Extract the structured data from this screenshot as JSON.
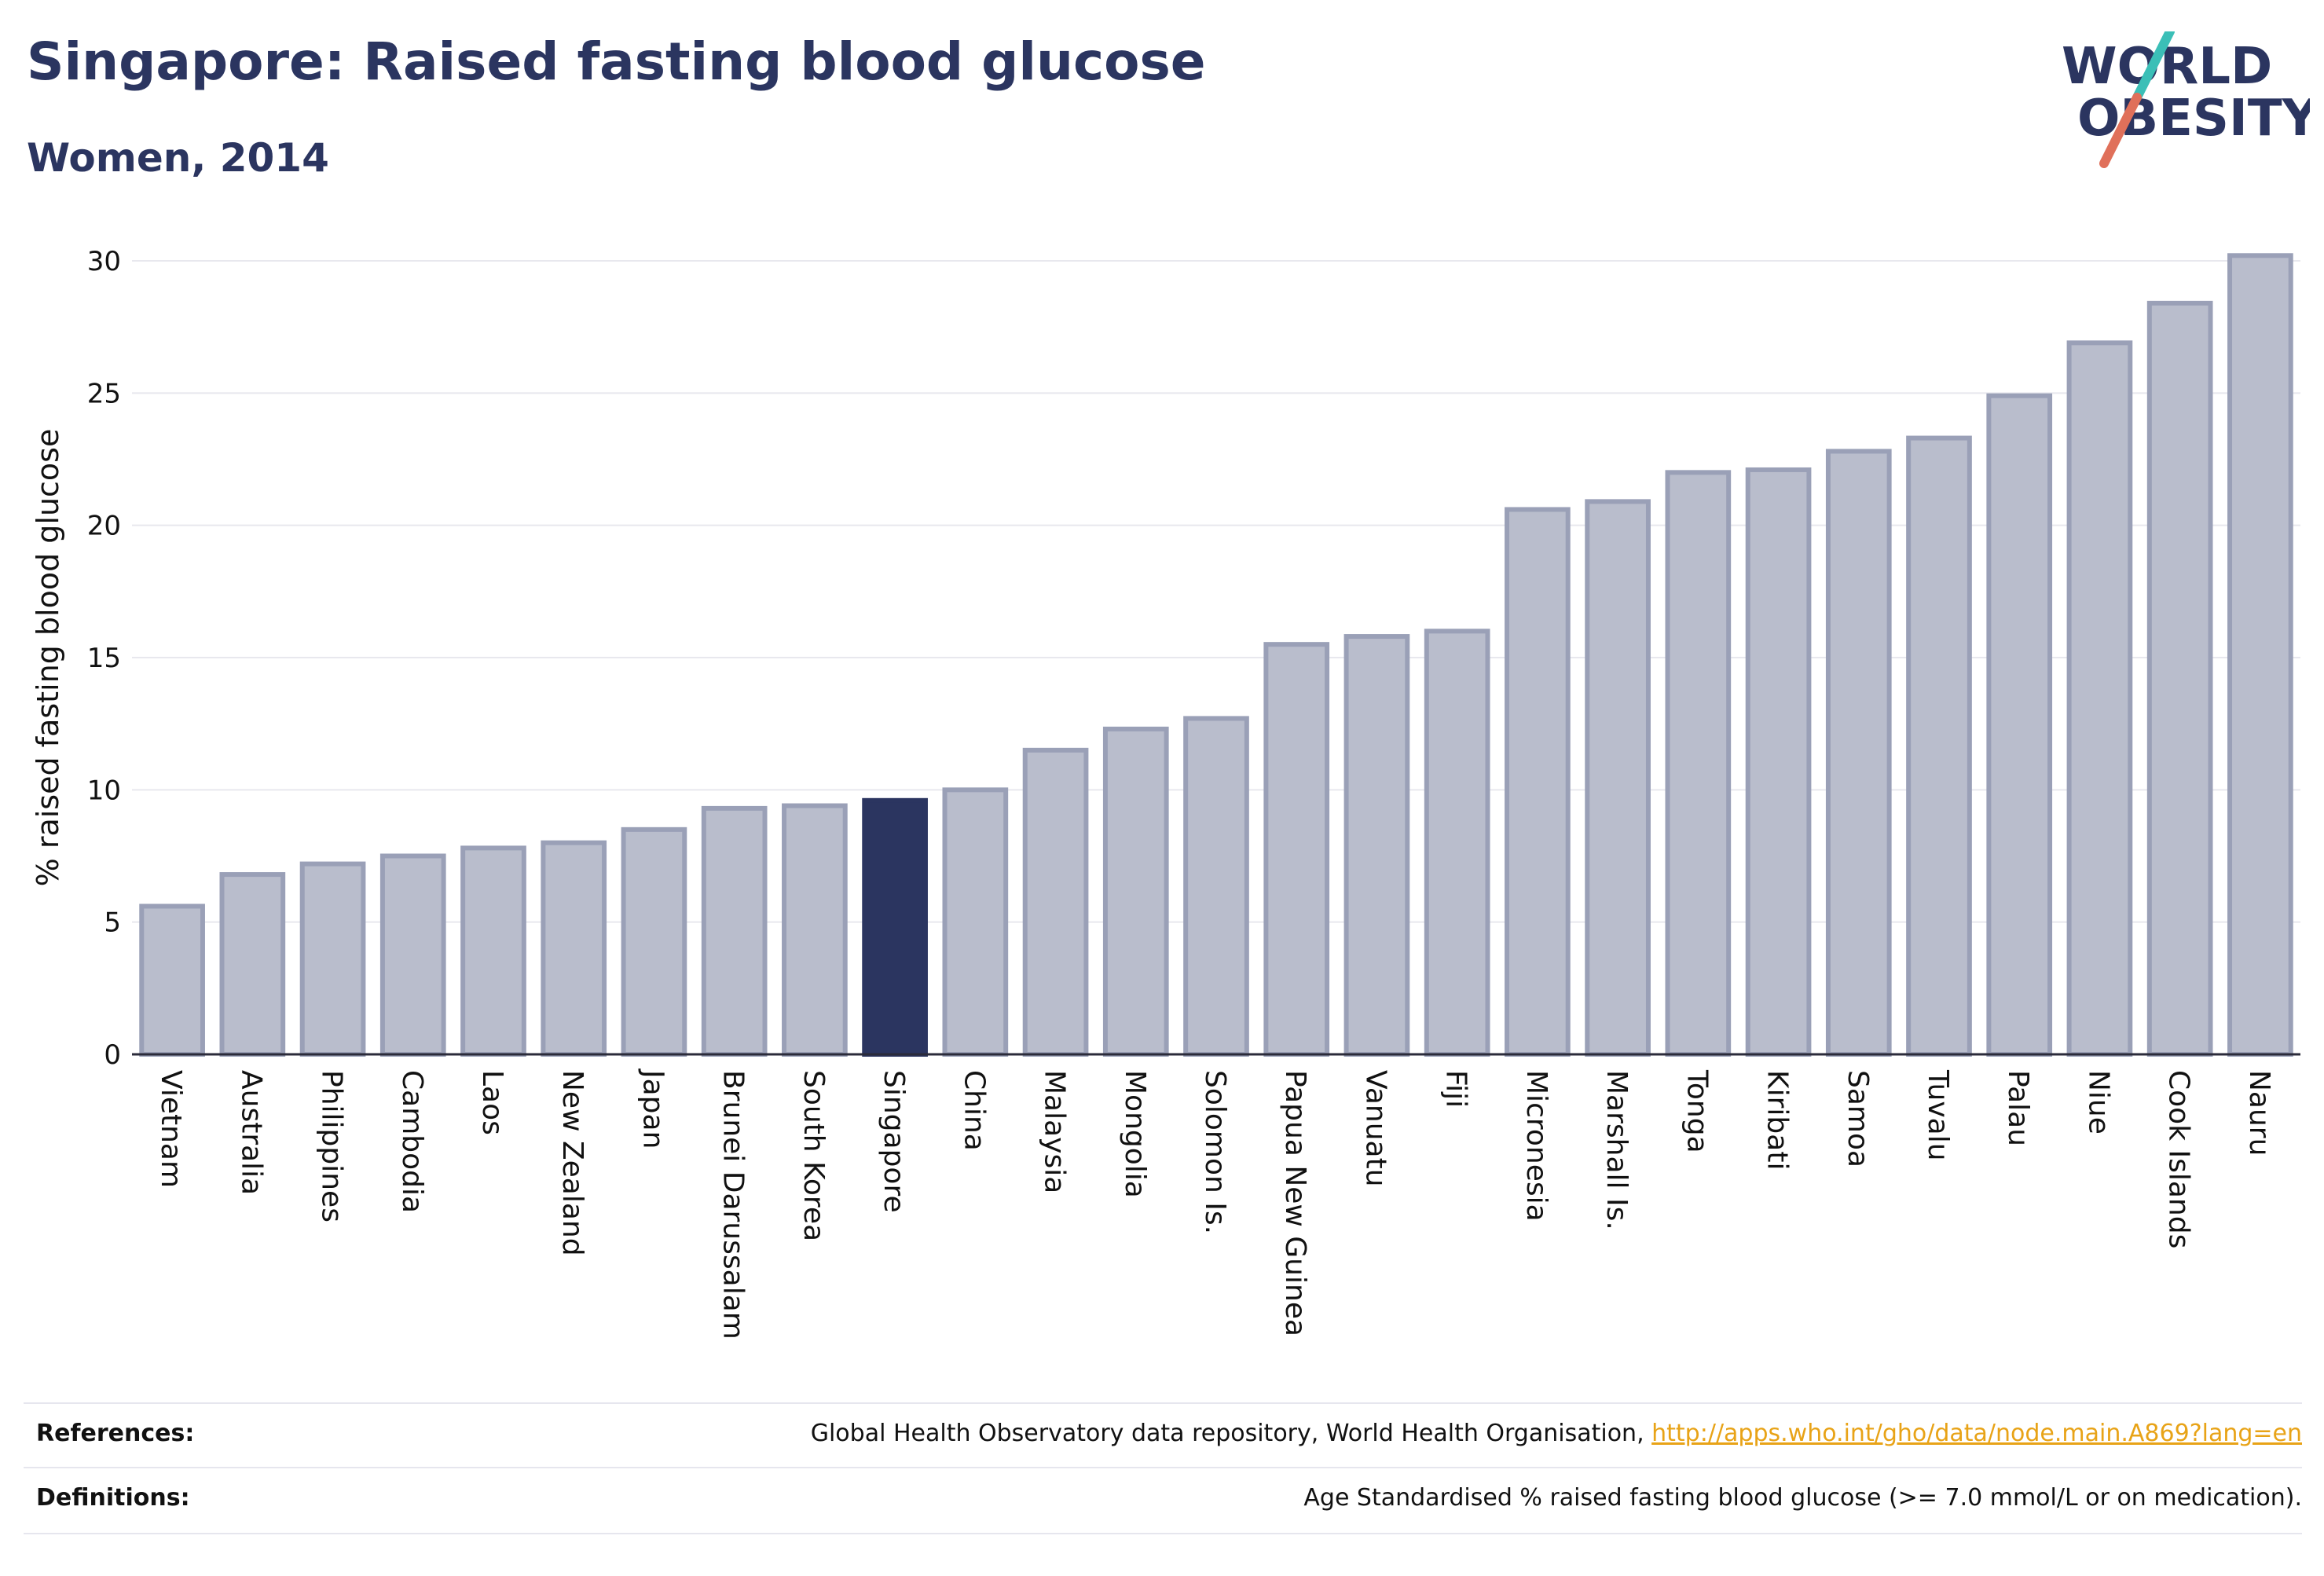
{
  "header": {
    "title": "Singapore: Raised fasting blood glucose",
    "subtitle": "Women, 2014"
  },
  "logo": {
    "line1": "WORLD",
    "line2": "OBESITY"
  },
  "colors": {
    "bar": "#b9bdcc",
    "bar_edge": "#9aa0b7",
    "highlight": "#2b3560",
    "slash_top": "#3bbfb7",
    "slash_bottom": "#e0705a"
  },
  "chart_data": {
    "type": "bar",
    "ylabel": "% raised fasting blood glucose",
    "ylim": [
      0,
      30
    ],
    "yticks": [
      0,
      5,
      10,
      15,
      20,
      25,
      30
    ],
    "grid": true,
    "highlight": "Singapore",
    "categories": [
      "Vietnam",
      "Australia",
      "Philippines",
      "Cambodia",
      "Laos",
      "New Zealand",
      "Japan",
      "Brunei Darussalam",
      "South Korea",
      "Singapore",
      "China",
      "Malaysia",
      "Mongolia",
      "Solomon Is.",
      "Papua New Guinea",
      "Vanuatu",
      "Fiji",
      "Micronesia",
      "Marshall Is.",
      "Tonga",
      "Kiribati",
      "Samoa",
      "Tuvalu",
      "Palau",
      "Niue",
      "Cook Islands",
      "Nauru"
    ],
    "values": [
      5.6,
      6.8,
      7.2,
      7.5,
      7.8,
      8.0,
      8.5,
      9.3,
      9.4,
      9.6,
      10.0,
      11.5,
      12.3,
      12.7,
      15.5,
      15.8,
      16.0,
      20.6,
      20.9,
      22.0,
      22.1,
      22.8,
      23.3,
      24.9,
      26.9,
      28.4,
      30.2
    ]
  },
  "footer": {
    "references_label": "References:",
    "references_text": "Global Health Observatory data repository, World Health Organisation, ",
    "references_link": "http://apps.who.int/gho/data/node.main.A869?lang=en",
    "definitions_label": "Definitions:",
    "definitions_text": "Age Standardised % raised fasting blood glucose (>= 7.0 mmol/L or on medication)."
  }
}
